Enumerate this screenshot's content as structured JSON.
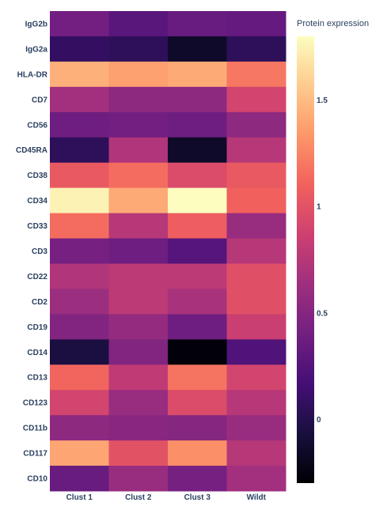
{
  "chart_data": {
    "type": "heatmap",
    "rows": [
      "IgG2b",
      "IgG2a",
      "HLA-DR",
      "CD7",
      "CD56",
      "CD45RA",
      "CD38",
      "CD34",
      "CD33",
      "CD3",
      "CD22",
      "CD2",
      "CD19",
      "CD14",
      "CD13",
      "CD123",
      "CD11b",
      "CD117",
      "CD10"
    ],
    "columns": [
      "Clust 1",
      "Clust 2",
      "Clust 3",
      "Wildt"
    ],
    "values": [
      [
        0.4,
        0.28,
        0.35,
        0.33
      ],
      [
        0.08,
        0.05,
        -0.15,
        0.05
      ],
      [
        1.45,
        1.38,
        1.42,
        1.2
      ],
      [
        0.65,
        0.55,
        0.55,
        0.9
      ],
      [
        0.38,
        0.4,
        0.38,
        0.55
      ],
      [
        0.05,
        0.72,
        -0.15,
        0.75
      ],
      [
        1.05,
        1.15,
        0.95,
        1.05
      ],
      [
        1.75,
        1.42,
        1.8,
        1.1
      ],
      [
        1.15,
        0.75,
        1.08,
        0.6
      ],
      [
        0.42,
        0.38,
        0.25,
        0.75
      ],
      [
        0.72,
        0.78,
        0.78,
        0.98
      ],
      [
        0.62,
        0.78,
        0.68,
        0.98
      ],
      [
        0.48,
        0.58,
        0.38,
        0.85
      ],
      [
        -0.05,
        0.48,
        -0.28,
        0.22
      ],
      [
        1.12,
        0.8,
        1.18,
        0.9
      ],
      [
        0.9,
        0.6,
        0.95,
        0.75
      ],
      [
        0.55,
        0.52,
        0.5,
        0.6
      ],
      [
        1.4,
        1.0,
        1.3,
        0.75
      ],
      [
        0.35,
        0.6,
        0.42,
        0.65
      ]
    ],
    "zmin": -0.3,
    "zmax": 1.8,
    "colorscale": "magma",
    "colorbar": {
      "title": "Protein expression",
      "ticks": [
        0,
        0.5,
        1,
        1.5
      ],
      "tick_labels": [
        "0",
        "0.5",
        "1",
        "1.5"
      ]
    }
  }
}
